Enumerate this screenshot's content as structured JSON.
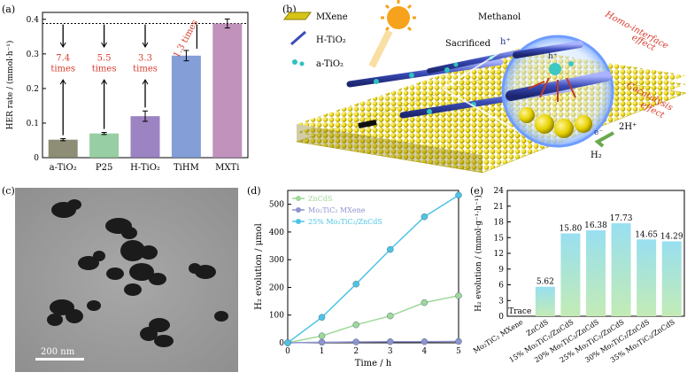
{
  "panels": {
    "a": {
      "label": "(a)"
    },
    "b": {
      "label": "(b)"
    },
    "c": {
      "label": "(c)",
      "scale_bar": "200 nm"
    },
    "d": {
      "label": "(d)"
    },
    "e": {
      "label": "(e)"
    }
  },
  "panel_b": {
    "legend": [
      "MXene",
      "H-TiO₂",
      "a-TiO₂"
    ],
    "labels": {
      "methanol": "Methanol",
      "sacrificed": "Sacrificed",
      "hplus": "h⁺",
      "homo": "Homo-interface",
      "homo2": "effect",
      "cocat": "Cocatalysis",
      "cocat2": "effect",
      "twoh": "2H⁺",
      "h2": "H₂",
      "e": "e⁻"
    }
  },
  "chart_data": [
    {
      "panel": "a",
      "type": "bar",
      "categories": [
        "a-TiO₂",
        "P25",
        "H-TiO₂",
        "TiHM",
        "MXTi"
      ],
      "values": [
        0.052,
        0.07,
        0.12,
        0.295,
        0.388
      ],
      "errors": [
        0.003,
        0.003,
        0.015,
        0.015,
        0.013
      ],
      "colors": [
        "#7a7a5e",
        "#86c693",
        "#8a6fb6",
        "#6f8ed0",
        "#b57fb0"
      ],
      "ylabel": "HER rate / (mmol·h⁻¹)",
      "ylim": [
        0,
        0.42
      ],
      "yticks": [
        0,
        0.1,
        0.2,
        0.3,
        0.4
      ],
      "ytick_labels": [
        "0",
        "0.1",
        "0.2",
        "0.3",
        "0.4"
      ],
      "reference_line": 0.388,
      "annotations": [
        {
          "category": "a-TiO₂",
          "lines": [
            "7.4",
            "times"
          ]
        },
        {
          "category": "P25",
          "lines": [
            "5.5",
            "times"
          ]
        },
        {
          "category": "H-TiO₂",
          "lines": [
            "3.3",
            "times"
          ]
        },
        {
          "category": "TiHM",
          "lines": [
            "1.3 times"
          ]
        }
      ]
    },
    {
      "panel": "d",
      "type": "line",
      "x": [
        0,
        1,
        2,
        3,
        4,
        5
      ],
      "series": [
        {
          "name": "ZnCdS",
          "values": [
            0,
            25,
            65,
            97,
            145,
            170
          ],
          "color": "#9fd899"
        },
        {
          "name": "Mo₂TiC₂ MXene",
          "values": [
            0,
            2,
            3,
            4,
            4,
            5
          ],
          "color": "#8f93cf"
        },
        {
          "name": "25% Mo₂TiC₂/ZnCdS",
          "values": [
            0,
            92,
            212,
            337,
            455,
            533
          ],
          "color": "#4cc4e6"
        }
      ],
      "xlabel": "Time / h",
      "ylabel": "H₂ evolution / μmol",
      "xlim": [
        0,
        5
      ],
      "ylim": [
        0,
        550
      ],
      "xticks": [
        0,
        1,
        2,
        3,
        4,
        5
      ],
      "yticks": [
        0,
        100,
        200,
        300,
        400,
        500
      ]
    },
    {
      "panel": "e",
      "type": "bar",
      "categories": [
        "Mo₂TiC₂ MXene",
        "ZnCdS",
        "15% Mo₂TiC₂/ZnCdS",
        "20% Mo₂TiC₂/ZnCdS",
        "25% Mo₂TiC₂/ZnCdS",
        "30% Mo₂TiC₂/ZnCdS",
        "35% Mo₂TiC₂/ZnCdS"
      ],
      "values": [
        0,
        5.62,
        15.8,
        16.38,
        17.73,
        14.65,
        14.29
      ],
      "value_labels": [
        "Trace",
        "5.62",
        "15.80",
        "16.38",
        "17.73",
        "14.65",
        "14.29"
      ],
      "ylabel": "H₂ evolution / (mmol·g⁻¹·h⁻¹)",
      "ylim": [
        0,
        24
      ],
      "yticks": [
        0,
        3,
        6,
        9,
        12,
        15,
        18,
        21,
        24
      ]
    }
  ]
}
